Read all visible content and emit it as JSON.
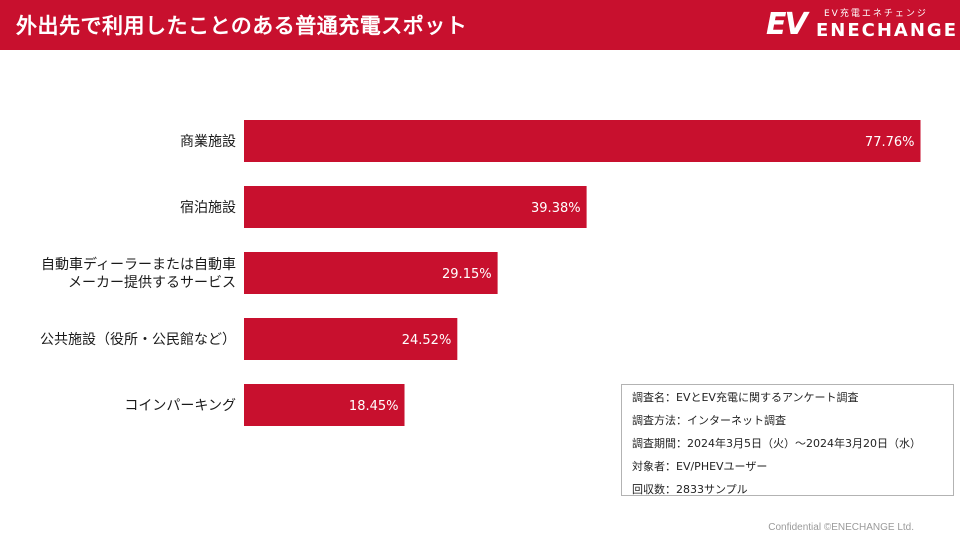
{
  "colors": {
    "brand": "#c8102e",
    "bar": "#c8102e"
  },
  "header": {
    "title": "外出先で利用したことのある普通充電スポット",
    "logo": {
      "mark": "EV",
      "tagline": "EV充電エネチェンジ",
      "name": "ENECHANGE"
    }
  },
  "chart_data": {
    "type": "bar",
    "orientation": "horizontal",
    "title": "外出先で利用したことのある普通充電スポット",
    "unit": "%",
    "xlim": [
      0,
      100
    ],
    "grid": false,
    "categories": [
      [
        "商業施設"
      ],
      [
        "宿泊施設"
      ],
      [
        "自動車ディーラーまたは自動車",
        "メーカー提供するサービス"
      ],
      [
        "公共施設（役所・公民館など）"
      ],
      [
        "コインパーキング"
      ]
    ],
    "values": [
      77.76,
      39.38,
      29.15,
      24.52,
      18.45
    ],
    "value_labels": [
      "77.76%",
      "39.38%",
      "29.15%",
      "24.52%",
      "18.45%"
    ]
  },
  "survey_info": [
    "調査名：EVとEV充電に関するアンケート調査",
    "調査方法：インターネット調査",
    "調査期間：2024年3月5日（火）〜2024年3月20日（水）",
    "対象者：EV/PHEVユーザー",
    "回収数：2833サンプル"
  ],
  "footer": {
    "text": "Confidential ©ENECHANGE Ltd."
  }
}
